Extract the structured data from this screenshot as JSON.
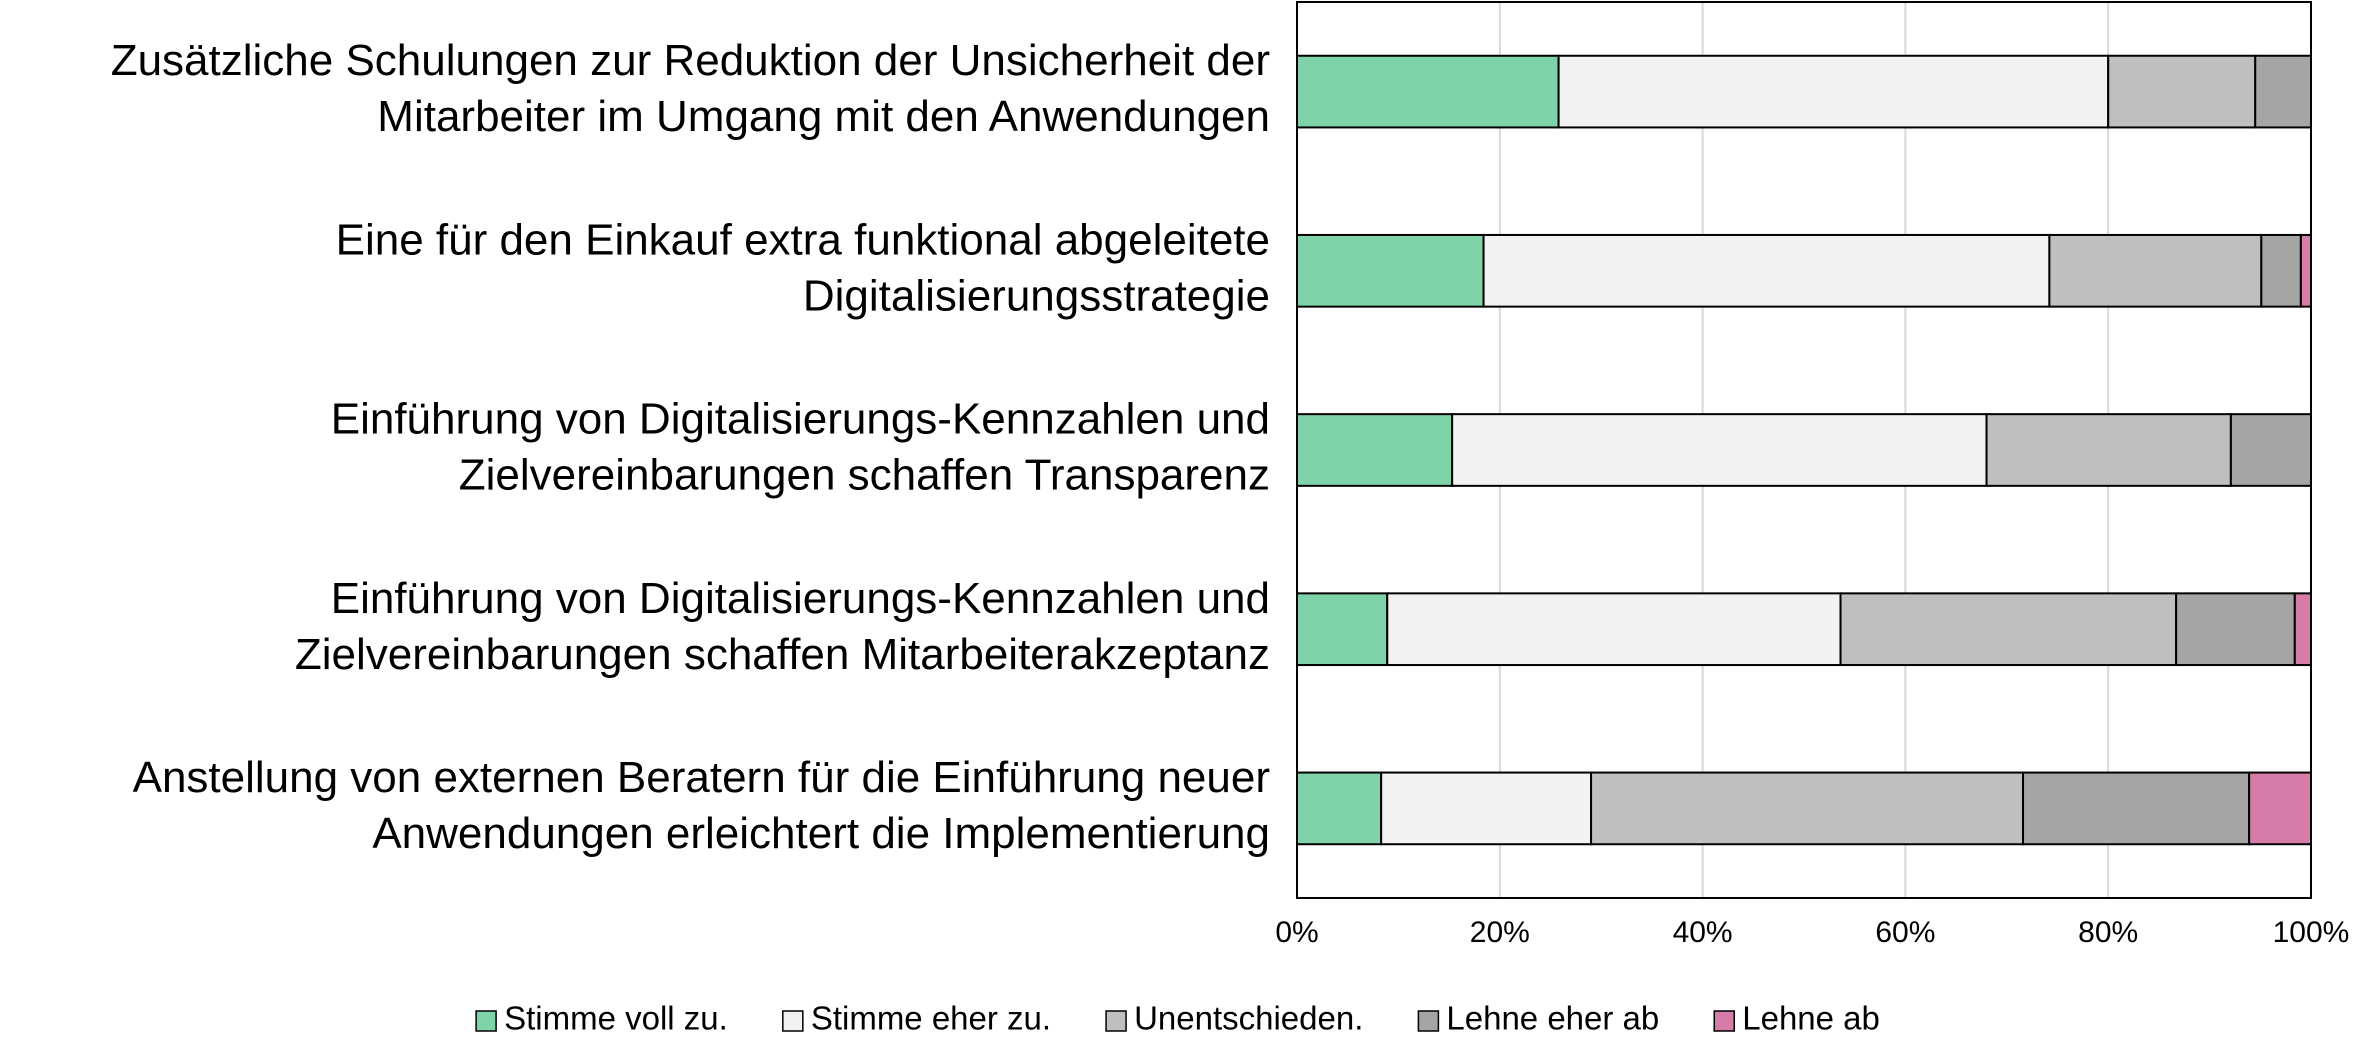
{
  "chart_data": {
    "type": "stacked_barh",
    "categories": [
      [
        "Zusätzliche Schulungen zur Reduktion der Unsicherheit der",
        "Mitarbeiter im Umgang mit den Anwendungen"
      ],
      [
        "Eine für den Einkauf extra funktional abgeleitete",
        "Digitalisierungsstrategie"
      ],
      [
        "Einführung von Digitalisierungs-Kennzahlen und",
        "Zielvereinbarungen schaffen Transparenz"
      ],
      [
        "Einführung von Digitalisierungs-Kennzahlen und",
        "Zielvereinbarungen schaffen Mitarbeiterakzeptanz"
      ],
      [
        "Anstellung von externen Beratern für die Einführung neuer",
        "Anwendungen erleichtert die Implementierung"
      ]
    ],
    "series": [
      {
        "name": "Stimme voll zu.",
        "color": "#7fd3a8",
        "values": [
          25.8,
          18.4,
          15.3,
          8.9,
          8.3
        ]
      },
      {
        "name": "Stimme eher zu.",
        "color": "#f2f2f2",
        "values": [
          54.2,
          55.8,
          52.7,
          44.7,
          20.7
        ]
      },
      {
        "name": "Unentschieden.",
        "color": "#bfbfbf",
        "values": [
          14.5,
          20.9,
          24.1,
          33.1,
          42.6
        ]
      },
      {
        "name": "Lehne eher ab",
        "color": "#a5a5a5",
        "values": [
          5.5,
          3.9,
          7.9,
          11.7,
          22.3
        ]
      },
      {
        "name": "Lehne ab",
        "color": "#d57ca8",
        "values": [
          0,
          1.0,
          0,
          1.6,
          6.1
        ]
      }
    ],
    "xlim": [
      0,
      100
    ],
    "xticks": [
      {
        "value": 0,
        "label": "0%"
      },
      {
        "value": 20,
        "label": "20%"
      },
      {
        "value": 40,
        "label": "40%"
      },
      {
        "value": 60,
        "label": "60%"
      },
      {
        "value": 80,
        "label": "80%"
      },
      {
        "value": 100,
        "label": "100%"
      }
    ],
    "grid": true,
    "legend": "bottom"
  }
}
